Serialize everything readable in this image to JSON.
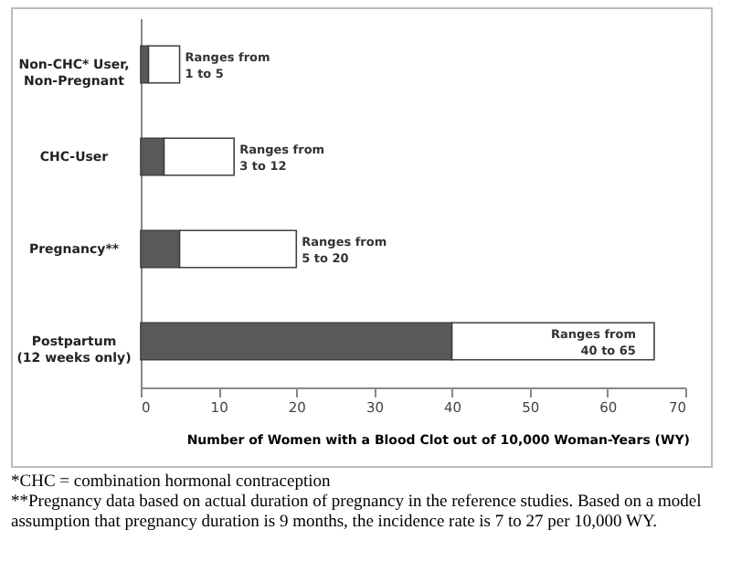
{
  "chart_data": {
    "type": "bar",
    "orientation": "horizontal",
    "stacked": true,
    "categories": [
      "Non-CHC* User, Non-Pregnant",
      "CHC-User",
      "Pregnancy**",
      "Postpartum (12 weeks only)"
    ],
    "series": [
      {
        "color": "#595959",
        "values": [
          1,
          3,
          5,
          40
        ]
      },
      {
        "color": "#ffffff",
        "values": [
          4,
          9,
          15,
          26
        ]
      }
    ],
    "xlim": [
      0,
      70
    ],
    "xticks": [
      0,
      10,
      20,
      30,
      40,
      50,
      60,
      70
    ],
    "xlabel": "Number of Women with a Blood Clot out of 10,000  Woman-Years (WY)",
    "grid": false,
    "legend": false,
    "annotations": [
      {
        "text": "Ranges from 1 to 5",
        "x": 5,
        "y": "Non-CHC* User, Non-Pregnant"
      },
      {
        "text": "Ranges from 3 to 12",
        "x": 12,
        "y": "CHC-User"
      },
      {
        "text": "Ranges from 5 to 20",
        "x": 20,
        "y": "Pregnancy**"
      },
      {
        "text": "Ranges from 40 to 65",
        "x": 66,
        "y": "Postpartum (12 weeks only)"
      },
      "*CHC = combination hormonal contraception",
      "**Pregnancy data based on actual duration of pregnancy in the reference studies. Based on a model assumption that pregnancy duration is 9 months, the incidence rate is 7 to 27 per 10,000 WY."
    ]
  }
}
